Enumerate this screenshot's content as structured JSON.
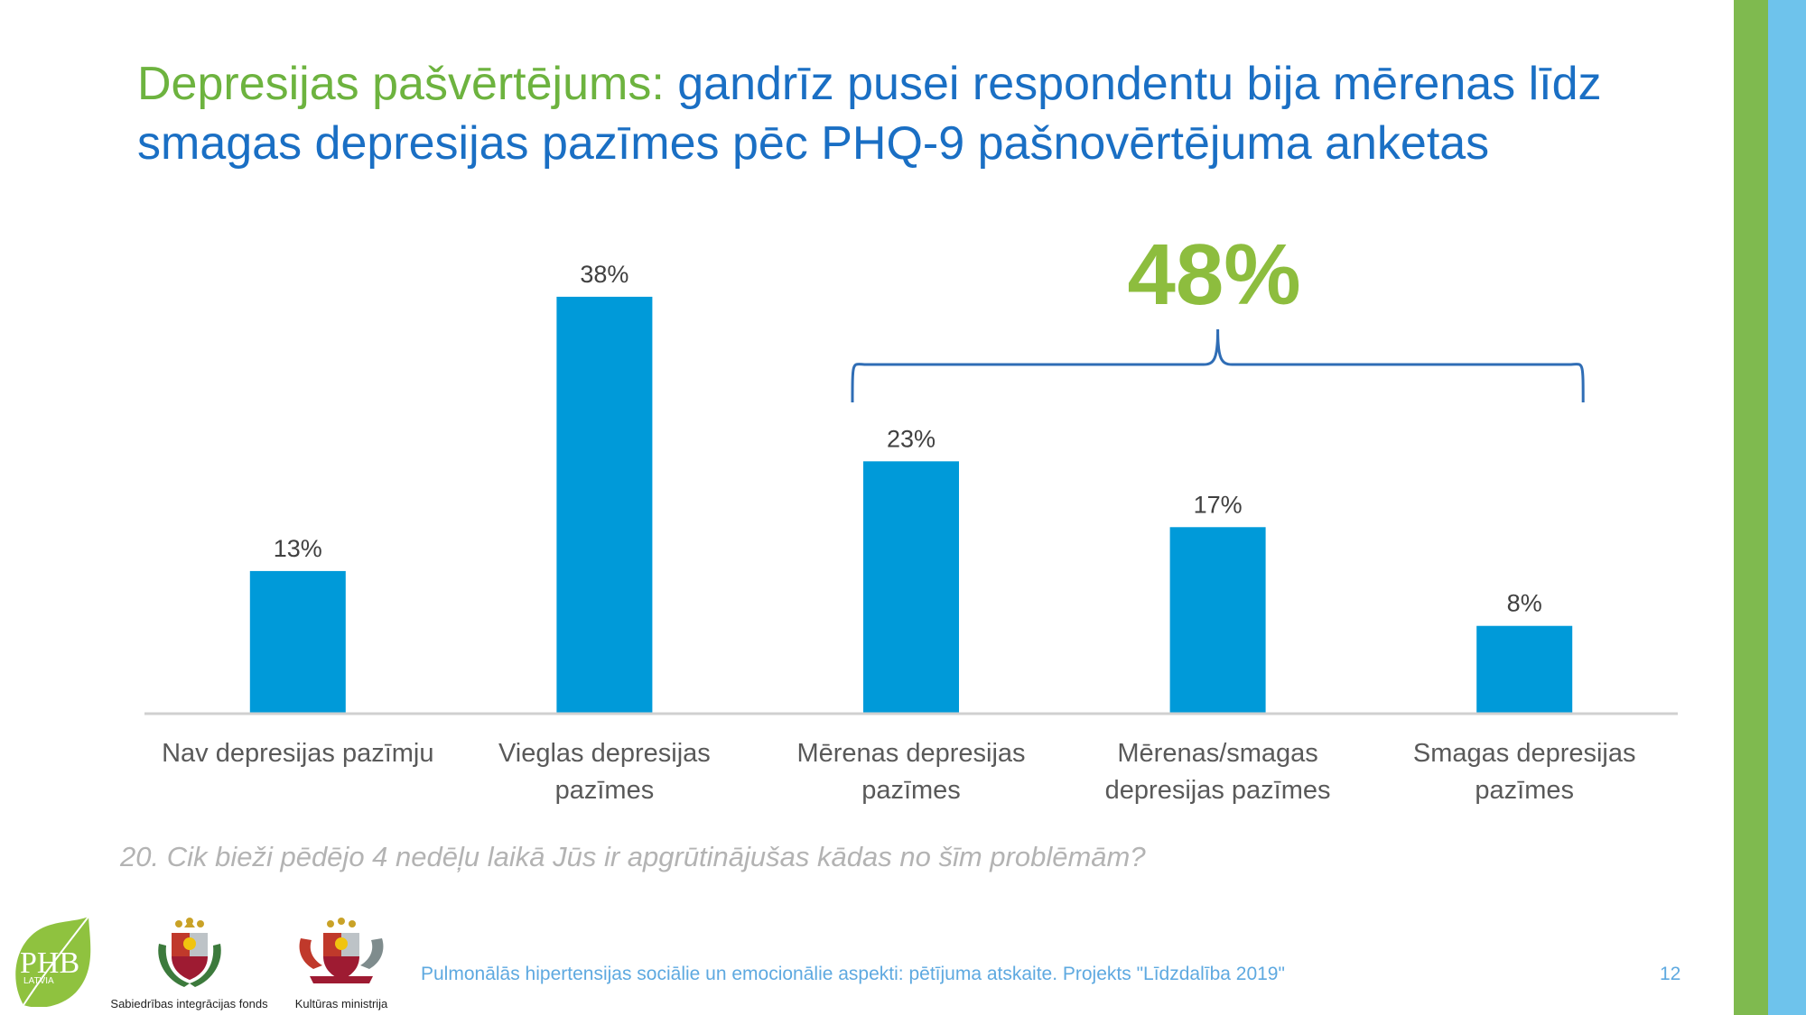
{
  "slide": {
    "title_lead": "Depresijas pašvērtējums:",
    "title_rest": " gandrīz pusei respondentu bija mērenas līdz smagas depresijas pazīmes pēc PHQ-9 pašnovērtējuma anketas",
    "question": "20. Cik bieži pēdējo 4 nedēļu laikā Jūs ir apgrūtinājušas kādas no šīm problēmām?",
    "footer": "Pulmonālās hipertensijas sociālie un emocionālie aspekti: pētījuma atskaite. Projekts \"Līdzdalība 2019\"",
    "page_number": "12"
  },
  "logos": {
    "phb_text": "PHB",
    "phb_sub": "LATVIA",
    "sif_caption": "Sabiedrības integrācijas fonds",
    "km_caption": "Kultūras ministrija"
  },
  "colors": {
    "bar": "#009ad9",
    "title_blue": "#1a6fc4",
    "title_green": "#6db33f",
    "highlight_green": "#8dbd3e",
    "brace": "#2f6db5"
  },
  "chart_data": {
    "type": "bar",
    "categories": [
      [
        "Nav depresijas pazīmju"
      ],
      [
        "Vieglas depresijas",
        "pazīmes"
      ],
      [
        "Mērenas depresijas",
        "pazīmes"
      ],
      [
        "Mērenas/smagas",
        "depresijas pazīmes"
      ],
      [
        "Smagas depresijas",
        "pazīmes"
      ]
    ],
    "values": [
      13,
      38,
      23,
      17,
      8
    ],
    "value_labels": [
      "13%",
      "38%",
      "23%",
      "17%",
      "8%"
    ],
    "unit": "%",
    "ylim": [
      0,
      40
    ],
    "grid": false,
    "annotation": {
      "text": "48%",
      "spans_categories": [
        2,
        4
      ]
    }
  }
}
